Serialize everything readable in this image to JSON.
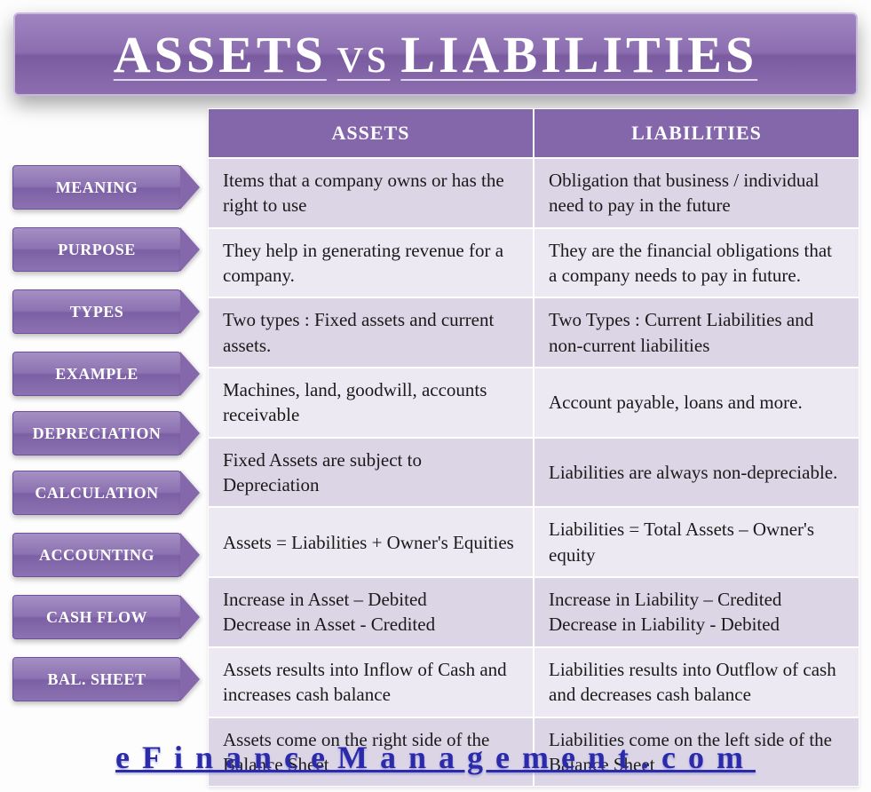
{
  "title": {
    "left": "ASSETS",
    "mid": "vs",
    "right": "LIABILITIES"
  },
  "colors": {
    "header_bg": "#8466ab",
    "chip_bg": "#8c72b1",
    "row_odd": "#dbd5e5",
    "row_even": "#ede9f2",
    "link": "#2a2aaa"
  },
  "columns": {
    "a": "ASSETS",
    "b": "LIABILITIES"
  },
  "rows": [
    {
      "label": "MEANING",
      "a": "Items that a company owns or has the right to use",
      "b": "Obligation that business / individual need to pay in the future"
    },
    {
      "label": "PURPOSE",
      "a": "They help in generating revenue for a company.",
      "b": "They are the financial obligations that a company needs to pay in future."
    },
    {
      "label": "TYPES",
      "a": "Two types : Fixed assets and current assets.",
      "b": "Two Types : Current Liabilities and non-current liabilities"
    },
    {
      "label": "EXAMPLE",
      "a": "Machines, land, goodwill, accounts receivable",
      "b": "Account payable, loans and more."
    },
    {
      "label": "DEPRECIATION",
      "a": "Fixed Assets are subject to Depreciation",
      "b": "Liabilities are always non-depreciable."
    },
    {
      "label": "CALCULATION",
      "a": "Assets = Liabilities + Owner's Equities",
      "b": "Liabilities = Total Assets – Owner's equity"
    },
    {
      "label": "ACCOUNTING",
      "a": "Increase in Asset – Debited\nDecrease in Asset - Credited",
      "b": "Increase in Liability – Credited\nDecrease in Liability - Debited"
    },
    {
      "label": "CASH FLOW",
      "a": "Assets results into Inflow of Cash and increases cash balance",
      "b": "Liabilities results into Outflow of cash and decreases cash balance"
    },
    {
      "label": "BAL. SHEET",
      "a": "Assets come on the right side of the Balance Sheet",
      "b": "Liabilities come on the left side of the Balance Sheet"
    }
  ],
  "footer": "eFinanceManagement.com"
}
